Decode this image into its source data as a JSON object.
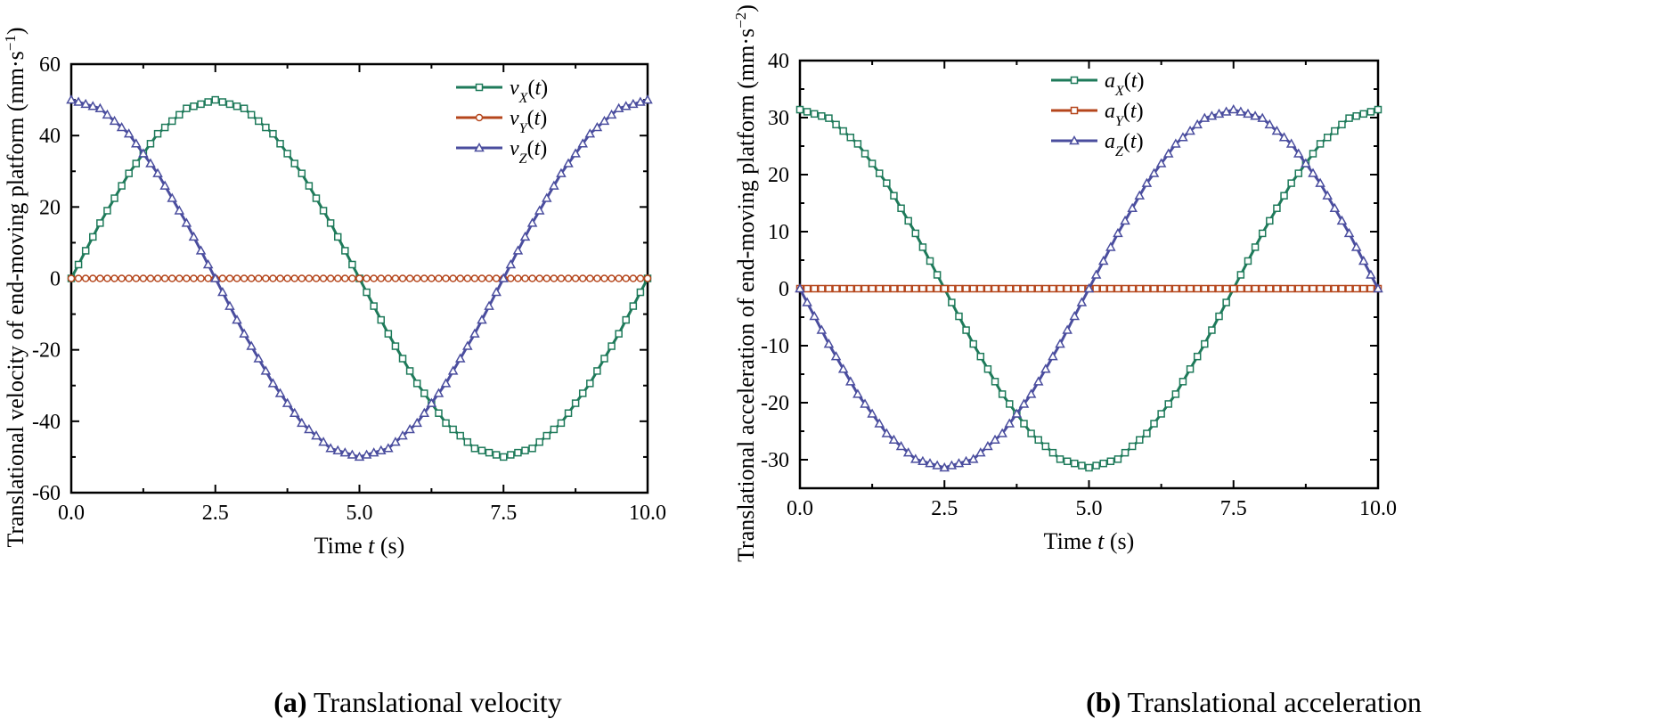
{
  "figure": {
    "panel_a": {
      "caption_id": "(a)",
      "caption_text": "Translational velocity"
    },
    "panel_b": {
      "caption_id": "(b)",
      "caption_text": "Translational acceleration"
    }
  },
  "chart_data": [
    {
      "type": "line",
      "title": "",
      "xlabel_prefix": "Time ",
      "xlabel_var": "t",
      "xlabel_suffix": " (s)",
      "ylabel_text": "Translational velocity of end-moving platform (mm·s",
      "ylabel_exp": "−1",
      "ylabel_close": ")",
      "xlim": [
        0,
        10
      ],
      "ylim": [
        -60,
        60
      ],
      "x_ticks": [
        "0.0",
        "2.5",
        "5.0",
        "7.5",
        "10.0"
      ],
      "y_ticks": [
        "-60",
        "-40",
        "-20",
        "0",
        "20",
        "40",
        "60"
      ],
      "legend_position": "top-right",
      "grid": false,
      "x": [
        0,
        0.5,
        1.0,
        1.5,
        2.0,
        2.5,
        3.0,
        3.5,
        4.0,
        4.5,
        5.0,
        5.5,
        6.0,
        6.5,
        7.0,
        7.5,
        8.0,
        8.5,
        9.0,
        9.5,
        10.0
      ],
      "series": [
        {
          "name": "vX(t)",
          "sym": "v",
          "sub": "X",
          "color": "#1e7a5a",
          "marker": "square",
          "values": [
            0,
            15.5,
            29.4,
            40.5,
            47.6,
            50,
            47.6,
            40.5,
            29.4,
            15.5,
            0,
            -15.5,
            -29.4,
            -40.5,
            -47.6,
            -50,
            -47.6,
            -40.5,
            -29.4,
            -15.5,
            0
          ]
        },
        {
          "name": "vY(t)",
          "sym": "v",
          "sub": "Y",
          "color": "#b5461c",
          "marker": "circle",
          "values": [
            0,
            0,
            0,
            0,
            0,
            0,
            0,
            0,
            0,
            0,
            0,
            0,
            0,
            0,
            0,
            0,
            0,
            0,
            0,
            0,
            0
          ]
        },
        {
          "name": "vZ(t)",
          "sym": "v",
          "sub": "Z",
          "color": "#4a4d9e",
          "marker": "triangle",
          "values": [
            50,
            47.6,
            40.5,
            29.4,
            15.5,
            0,
            -15.5,
            -29.4,
            -40.5,
            -47.6,
            -50,
            -47.6,
            -40.5,
            -29.4,
            -15.5,
            0,
            15.5,
            29.4,
            40.5,
            47.6,
            50
          ]
        }
      ]
    },
    {
      "type": "line",
      "title": "",
      "xlabel_prefix": "Time ",
      "xlabel_var": "t",
      "xlabel_suffix": " (s)",
      "ylabel_text": "Translational acceleration of end-moving platform (mm·s",
      "ylabel_exp": "−2",
      "ylabel_close": ")",
      "xlim": [
        0,
        10
      ],
      "ylim": [
        -35,
        40
      ],
      "x_ticks": [
        "0.0",
        "2.5",
        "5.0",
        "7.5",
        "10.0"
      ],
      "y_ticks": [
        "-30",
        "-20",
        "-10",
        "0",
        "10",
        "20",
        "30",
        "40"
      ],
      "legend_position": "top-center",
      "grid": false,
      "x": [
        0,
        0.5,
        1.0,
        1.5,
        2.0,
        2.5,
        3.0,
        3.5,
        4.0,
        4.5,
        5.0,
        5.5,
        6.0,
        6.5,
        7.0,
        7.5,
        8.0,
        8.5,
        9.0,
        9.5,
        10.0
      ],
      "series": [
        {
          "name": "aX(t)",
          "sym": "a",
          "sub": "X",
          "color": "#1e7a5a",
          "marker": "square",
          "values": [
            31.4,
            29.9,
            25.4,
            18.5,
            9.7,
            0,
            -9.7,
            -18.5,
            -25.4,
            -29.9,
            -31.4,
            -29.9,
            -25.4,
            -18.5,
            -9.7,
            0,
            9.7,
            18.5,
            25.4,
            29.9,
            31.4
          ]
        },
        {
          "name": "aY(t)",
          "sym": "a",
          "sub": "Y",
          "color": "#b5461c",
          "marker": "square",
          "values": [
            0,
            0,
            0,
            0,
            0,
            0,
            0,
            0,
            0,
            0,
            0,
            0,
            0,
            0,
            0,
            0,
            0,
            0,
            0,
            0,
            0
          ]
        },
        {
          "name": "aZ(t)",
          "sym": "a",
          "sub": "Z",
          "color": "#4a4d9e",
          "marker": "triangle",
          "values": [
            0,
            -9.7,
            -18.5,
            -25.4,
            -29.9,
            -31.4,
            -29.9,
            -25.4,
            -18.5,
            -9.7,
            0,
            9.7,
            18.5,
            25.4,
            29.9,
            31.4,
            29.9,
            25.4,
            18.5,
            9.7,
            0
          ]
        }
      ]
    }
  ]
}
